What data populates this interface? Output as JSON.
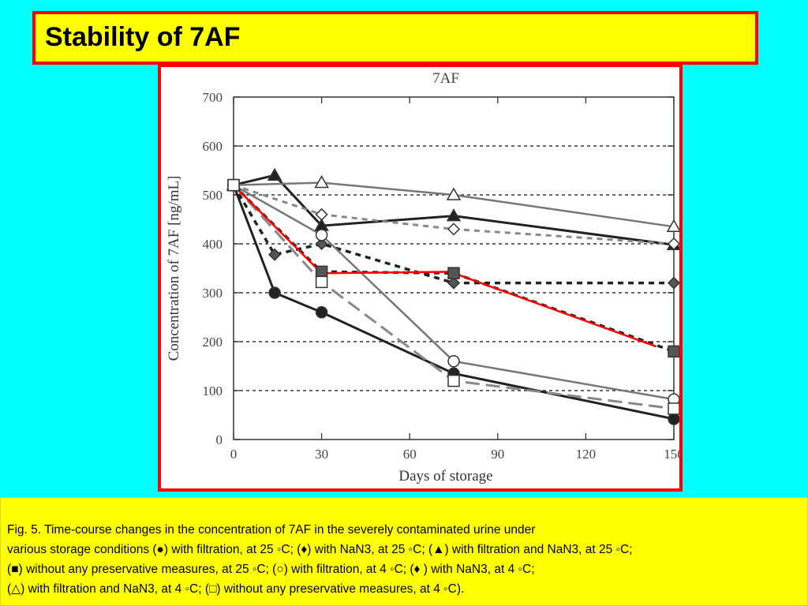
{
  "slide": {
    "title": "Stability of 7AF",
    "caption_lines": [
      "Fig. 5. Time-course  changes in the concentration of 7AF in the severely contaminated urine under",
      "various storage conditions (●) with filtration, at 25 ◦C; (♦) with NaN3, at 25 ◦C; (▲) with filtration and NaN3, at 25 ◦C;",
      "(■) without any preservative measures, at 25 ◦C; (○) with filtration, at 4 ◦C; (♦ ) with NaN3, at 4 ◦C;",
      " (△) with filtration and NaN3, at 4 ◦C; (□) without any preservative measures, at 4 ◦C)."
    ]
  },
  "colors": {
    "background": "#00ffff",
    "panel": "#ffff00",
    "border": "#ff0000",
    "highlight_line": "#ff0000"
  },
  "chart_data": {
    "type": "line",
    "title": "7AF",
    "xlabel": "Days of storage",
    "ylabel": "Concentration of 7AF [ng/mL]",
    "xlim": [
      0,
      150
    ],
    "ylim": [
      0,
      700
    ],
    "xticks": [
      0,
      30,
      60,
      90,
      120,
      150
    ],
    "yticks": [
      0,
      100,
      200,
      300,
      400,
      500,
      600,
      700
    ],
    "grid": "horizontal dotted",
    "legend": "none",
    "series": [
      {
        "marker": "filled-circle",
        "style": "solid-black",
        "x": [
          0,
          14,
          30,
          75,
          150
        ],
        "y": [
          520,
          300,
          260,
          135,
          42
        ]
      },
      {
        "marker": "filled-diamond",
        "style": "dashed-black",
        "x": [
          0,
          14,
          30,
          75,
          150
        ],
        "y": [
          520,
          378,
          400,
          320,
          320
        ]
      },
      {
        "marker": "filled-triangle",
        "style": "solid-black",
        "x": [
          0,
          14,
          30,
          75,
          150
        ],
        "y": [
          520,
          540,
          437,
          457,
          398
        ]
      },
      {
        "marker": "filled-square",
        "style": "dashed-black",
        "x": [
          0,
          30,
          75,
          150
        ],
        "y": [
          520,
          343,
          340,
          180
        ]
      },
      {
        "marker": "open-circle",
        "style": "solid-gray",
        "x": [
          0,
          30,
          75,
          150
        ],
        "y": [
          520,
          418,
          160,
          82
        ]
      },
      {
        "marker": "open-diamond",
        "style": "dashed-gray",
        "x": [
          0,
          30,
          75,
          150
        ],
        "y": [
          520,
          460,
          430,
          400
        ]
      },
      {
        "marker": "open-triangle",
        "style": "solid-gray",
        "x": [
          0,
          30,
          75,
          150
        ],
        "y": [
          520,
          525,
          500,
          435
        ]
      },
      {
        "marker": "open-square",
        "style": "longdash-gray",
        "x": [
          0,
          30,
          75,
          150
        ],
        "y": [
          520,
          322,
          120,
          63
        ]
      }
    ],
    "annotation_lines": [
      {
        "x": [
          0,
          30,
          75
        ],
        "y": [
          520,
          340,
          343
        ]
      },
      {
        "x": [
          75,
          144
        ],
        "y": [
          340,
          190
        ]
      }
    ]
  }
}
